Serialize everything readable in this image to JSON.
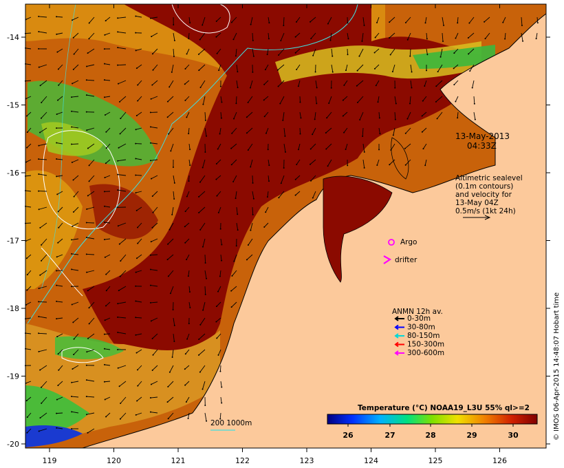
{
  "lon_ticks": [
    "119",
    "120",
    "121",
    "122",
    "123",
    "124",
    "125",
    "126"
  ],
  "lat_ticks": [
    "-14",
    "-15",
    "-16",
    "-17",
    "-18",
    "-19",
    "-20"
  ],
  "timestamp": {
    "date": "13-May-2013",
    "time": "04:33Z"
  },
  "altimetry_note": [
    "Altimetric sealevel",
    "(0.1m contours)",
    "and velocity for",
    "13-May 04Z",
    "0.5m/s (1kt 24h)"
  ],
  "argo_label": "Argo",
  "drifter_label": "drifter",
  "mooring_legend": {
    "title": "ANMN 12h av.",
    "items": [
      {
        "label": "0-30m",
        "color": "#000000"
      },
      {
        "label": "30-80m",
        "color": "#0000ff"
      },
      {
        "label": "80-150m",
        "color": "#00d8d8"
      },
      {
        "label": "150-300m",
        "color": "#ff0000"
      },
      {
        "label": "300-600m",
        "color": "#ff00ff"
      }
    ]
  },
  "isobath_label": "200  1000m",
  "colorbar": {
    "title": "Temperature (°C) NOAA19_L3U 55% ql>=2",
    "ticks": [
      "26",
      "27",
      "28",
      "29",
      "30"
    ]
  },
  "credit": "© IMOS 06-Apr-2015 14:48:07 Hobart time",
  "colors": {
    "land": "#fcc99b",
    "sst_hot": "#8b0a00",
    "sst_warm": "#c85a00",
    "sst_mid": "#e5a000",
    "sst_cool": "#3cc03c",
    "sst_cold": "#1a3ad0"
  }
}
